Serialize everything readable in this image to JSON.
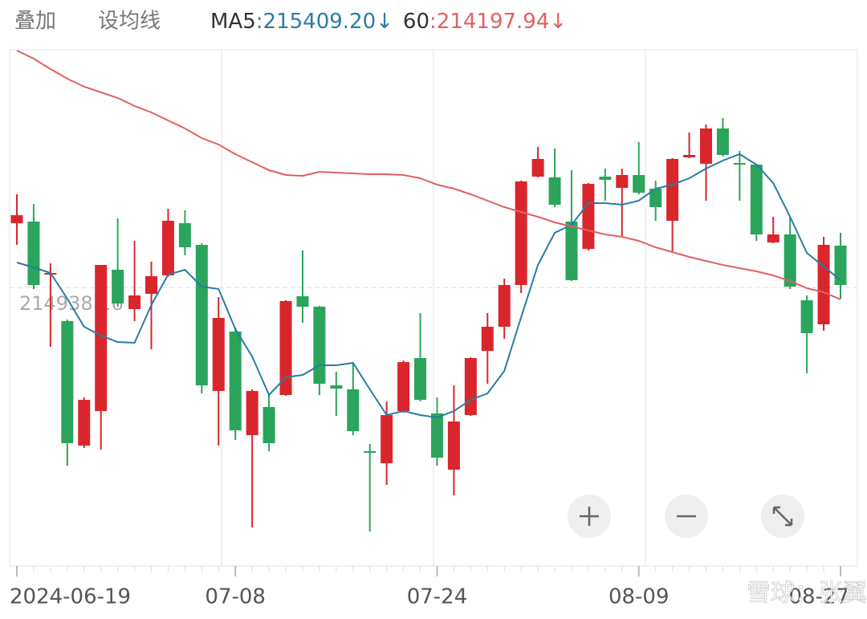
{
  "header": {
    "overlay": "叠加",
    "set_ma": "设均线"
  },
  "watermark": "雪球：张翼轸",
  "chart_data": {
    "type": "candlestick",
    "categories": [
      "2024-06-19",
      null,
      null,
      null,
      null,
      null,
      null,
      null,
      null,
      null,
      null,
      null,
      null,
      "07-08",
      null,
      null,
      null,
      null,
      null,
      null,
      null,
      null,
      null,
      null,
      null,
      "07-24",
      null,
      null,
      null,
      null,
      null,
      null,
      null,
      null,
      null,
      null,
      null,
      "08-09",
      null,
      null,
      null,
      null,
      null,
      null,
      null,
      null,
      null,
      null,
      null,
      "08-27"
    ],
    "open": [
      218950,
      219050,
      215750,
      212850,
      205100,
      207250,
      216050,
      213600,
      214550,
      215700,
      218950,
      217600,
      208500,
      212200,
      205750,
      207500,
      208250,
      214400,
      213750,
      208850,
      208600,
      204750,
      204000,
      207250,
      210550,
      207100,
      203600,
      207000,
      211000,
      212500,
      215100,
      221850,
      221800,
      219050,
      217350,
      221850,
      221150,
      221950,
      221100,
      219100,
      223050,
      222650,
      224850,
      222700,
      222600,
      217750,
      218250,
      214150,
      212650,
      217550
    ],
    "close": [
      219450,
      215100,
      215850,
      205250,
      207950,
      216350,
      213950,
      214450,
      215650,
      219100,
      217450,
      208850,
      213050,
      206050,
      208500,
      205250,
      214100,
      213750,
      208950,
      208650,
      206000,
      204650,
      207000,
      210300,
      207950,
      204350,
      206600,
      210550,
      212500,
      215100,
      221550,
      222950,
      220100,
      215400,
      221400,
      221650,
      221950,
      220850,
      219950,
      222950,
      223200,
      224850,
      223200,
      222600,
      218250,
      218250,
      215000,
      212100,
      217600,
      215100
    ],
    "high": [
      220750,
      220150,
      216450,
      212950,
      208100,
      216350,
      219250,
      217850,
      216550,
      219850,
      219750,
      217700,
      214350,
      212450,
      208600,
      208350,
      214150,
      217250,
      213800,
      209700,
      210250,
      205200,
      207850,
      210400,
      213350,
      208100,
      208850,
      210600,
      213350,
      215500,
      221600,
      223700,
      223600,
      222250,
      221450,
      222350,
      222350,
      224000,
      221600,
      223000,
      224600,
      225100,
      225500,
      223450,
      222650,
      219350,
      219350,
      214450,
      218100,
      218350
    ],
    "low": [
      217600,
      214850,
      211250,
      203850,
      204950,
      204850,
      213750,
      212850,
      211100,
      215600,
      216950,
      208350,
      205100,
      205450,
      200000,
      204750,
      208200,
      212750,
      208250,
      206950,
      205750,
      199750,
      202650,
      207150,
      207850,
      203850,
      202000,
      206950,
      208950,
      211750,
      214600,
      221800,
      219950,
      215350,
      217250,
      220350,
      218100,
      220750,
      219100,
      217100,
      223000,
      220350,
      223100,
      220350,
      217850,
      217700,
      214850,
      209600,
      212250,
      214250
    ],
    "up_color": "#d9262c",
    "down_color": "#2ba45c",
    "series": [
      {
        "name": "MA5",
        "color": "#2a7ca6",
        "last_label": ":215409.20↓",
        "values": [
          216500,
          216200,
          215850,
          214250,
          212500,
          211950,
          211550,
          211500,
          213850,
          215750,
          216050,
          215000,
          214850,
          212350,
          210650,
          208250,
          209350,
          209500,
          210100,
          210100,
          210250,
          208600,
          207000,
          207250,
          207000,
          206850,
          207250,
          207950,
          208350,
          209750,
          213100,
          216350,
          218350,
          218850,
          220200,
          220200,
          220100,
          220350,
          221100,
          221350,
          221750,
          222350,
          222850,
          223250,
          222600,
          221450,
          219350,
          217100,
          216250,
          215409.2
        ]
      },
      {
        "name": "60",
        "color": "#e0615f",
        "last_label": ":214197.94↓",
        "values": [
          229700,
          229200,
          228550,
          227950,
          227450,
          227100,
          226750,
          226250,
          225850,
          225350,
          224850,
          224250,
          223850,
          223250,
          222750,
          222250,
          221950,
          221900,
          222150,
          222100,
          222050,
          222000,
          222000,
          221950,
          221750,
          221350,
          221100,
          220750,
          220350,
          219950,
          219650,
          219350,
          219000,
          218750,
          218500,
          218250,
          218100,
          217850,
          217450,
          217150,
          216850,
          216600,
          216350,
          216150,
          215950,
          215700,
          215350,
          214900,
          214650,
          214197.94
        ]
      }
    ],
    "reference": {
      "value": 214938.16,
      "label": "214938.16"
    },
    "ylim": [
      197600,
      229750
    ]
  }
}
